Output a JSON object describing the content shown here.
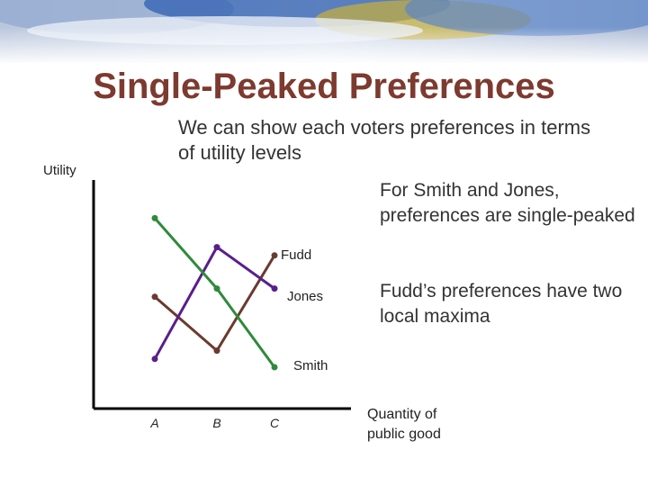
{
  "slide": {
    "title": "Single-Peaked Preferences",
    "subtitle": "We can show each voters preferences in terms of utility levels",
    "notes": [
      "For Smith and Jones, preferences are single-peaked",
      "Fudd’s preferences have two local maxima"
    ]
  },
  "chart_data": {
    "type": "line",
    "title": "",
    "ylabel": "Utility",
    "xlabel": "Quantity of public good",
    "categories": [
      "A",
      "B",
      "C"
    ],
    "yticks": false,
    "grid": false,
    "legend": "labels at line ends",
    "series": [
      {
        "name": "Fudd",
        "values": [
          2.7,
          1.4,
          3.7
        ],
        "color": "#6b3a2e"
      },
      {
        "name": "Jones",
        "values": [
          1.2,
          3.9,
          2.9
        ],
        "color": "#5a1e8c"
      },
      {
        "name": "Smith",
        "values": [
          4.6,
          2.9,
          1.0
        ],
        "color": "#2f8a3a"
      }
    ]
  },
  "colors": {
    "title": "#7d3a2f",
    "text": "#333333",
    "axis": "#000000"
  }
}
